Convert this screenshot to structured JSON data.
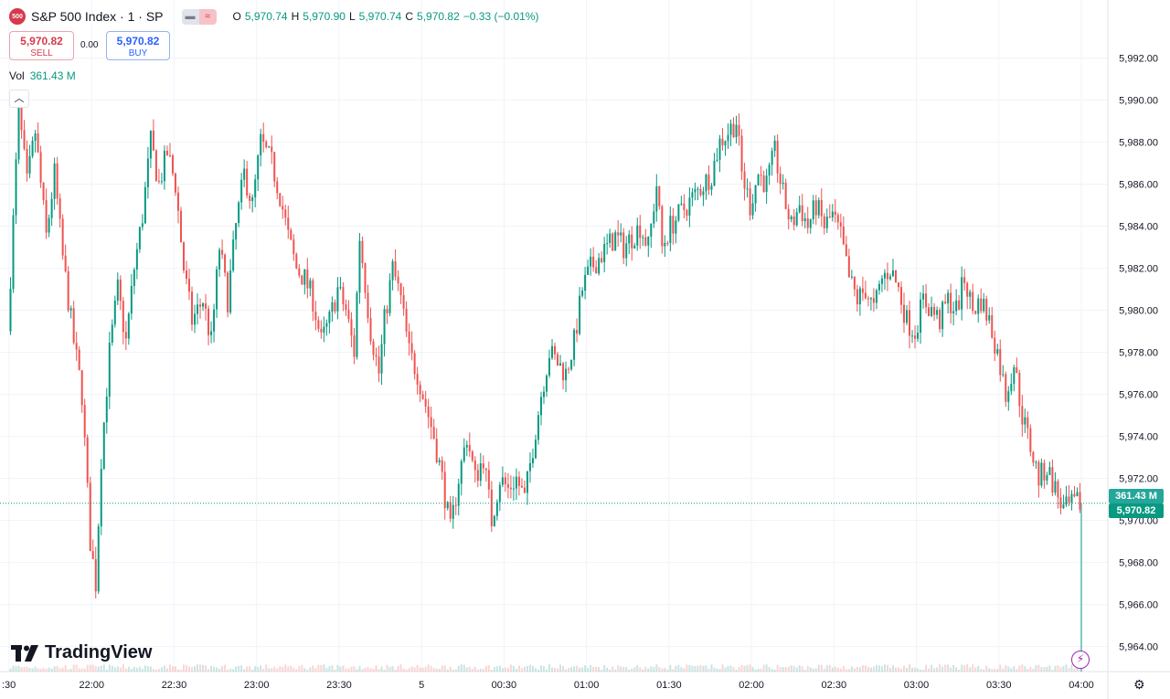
{
  "header": {
    "symbol_badge": "500",
    "title": "S&P 500 Index · 1 · SP",
    "ohlc": {
      "o_label": "O",
      "o": "5,970.74",
      "h_label": "H",
      "h": "5,970.90",
      "l_label": "L",
      "l": "5,970.74",
      "c_label": "C",
      "c": "5,970.82",
      "change": "−0.33 (−0.01%)"
    }
  },
  "trade": {
    "sell_price": "5,970.82",
    "sell_label": "SELL",
    "spread": "0.00",
    "buy_price": "5,970.82",
    "buy_label": "BUY"
  },
  "volume": {
    "label": "Vol",
    "value": "361.43 M"
  },
  "tags": {
    "volume": "361.43 M",
    "price": "5,970.82"
  },
  "brand": {
    "name": "TradingView"
  },
  "colors": {
    "up": "#089981",
    "down": "#ef5350",
    "grid": "#f0f3fa",
    "accent": "#2962ff"
  },
  "icons": [
    "collapse-icon",
    "lightning-icon",
    "settings-gear-icon",
    "tradingview-logo-icon"
  ],
  "chart_data": {
    "type": "candlestick",
    "title": "S&P 500 Index · 1 · SP",
    "ylim": [
      5963.2,
      5993.2
    ],
    "y_ticks": [
      5992,
      5990,
      5988,
      5986,
      5984,
      5982,
      5980,
      5978,
      5976,
      5974,
      5972,
      5970,
      5968,
      5966,
      5964
    ],
    "y_tick_labels": [
      "5,992.00",
      "5,990.00",
      "5,988.00",
      "5,986.00",
      "5,984.00",
      "5,982.00",
      "5,980.00",
      "5,978.00",
      "5,976.00",
      "5,974.00",
      "5,972.00",
      "5,970.00",
      "5,968.00",
      "5,966.00",
      "5,964.00"
    ],
    "x_tick_labels": [
      ":30",
      "22:00",
      "22:30",
      "23:00",
      "23:30",
      "5",
      "00:30",
      "01:00",
      "01:30",
      "02:00",
      "02:30",
      "03:00",
      "03:30",
      "04:00"
    ],
    "last_price": 5970.82,
    "anchors": [
      {
        "t": "21:30",
        "p": 5979.0
      },
      {
        "t": "21:34",
        "p": 5989.5
      },
      {
        "t": "21:37",
        "p": 5986.0
      },
      {
        "t": "21:40",
        "p": 5988.5
      },
      {
        "t": "21:44",
        "p": 5983.5
      },
      {
        "t": "21:47",
        "p": 5986.5
      },
      {
        "t": "21:50",
        "p": 5982.5
      },
      {
        "t": "21:54",
        "p": 5978.5
      },
      {
        "t": "21:57",
        "p": 5976.0
      },
      {
        "t": "22:00",
        "p": 5969.0
      },
      {
        "t": "22:02",
        "p": 5967.0
      },
      {
        "t": "22:04",
        "p": 5973.0
      },
      {
        "t": "22:07",
        "p": 5978.0
      },
      {
        "t": "22:10",
        "p": 5981.0
      },
      {
        "t": "22:13",
        "p": 5978.5
      },
      {
        "t": "22:16",
        "p": 5982.0
      },
      {
        "t": "22:19",
        "p": 5984.5
      },
      {
        "t": "22:22",
        "p": 5988.0
      },
      {
        "t": "22:25",
        "p": 5986.0
      },
      {
        "t": "22:28",
        "p": 5987.5
      },
      {
        "t": "22:31",
        "p": 5986.0
      },
      {
        "t": "22:34",
        "p": 5982.0
      },
      {
        "t": "22:37",
        "p": 5979.5
      },
      {
        "t": "22:41",
        "p": 5980.5
      },
      {
        "t": "22:44",
        "p": 5978.5
      },
      {
        "t": "22:47",
        "p": 5983.0
      },
      {
        "t": "22:50",
        "p": 5980.5
      },
      {
        "t": "22:53",
        "p": 5984.0
      },
      {
        "t": "22:56",
        "p": 5986.5
      },
      {
        "t": "22:59",
        "p": 5985.0
      },
      {
        "t": "23:02",
        "p": 5988.0
      },
      {
        "t": "23:06",
        "p": 5987.0
      },
      {
        "t": "23:09",
        "p": 5985.5
      },
      {
        "t": "23:12",
        "p": 5983.5
      },
      {
        "t": "23:15",
        "p": 5982.0
      },
      {
        "t": "23:18",
        "p": 5981.5
      },
      {
        "t": "23:21",
        "p": 5980.5
      },
      {
        "t": "23:24",
        "p": 5978.5
      },
      {
        "t": "23:27",
        "p": 5979.5
      },
      {
        "t": "23:30",
        "p": 5981.0
      },
      {
        "t": "23:33",
        "p": 5980.0
      },
      {
        "t": "23:36",
        "p": 5978.0
      },
      {
        "t": "23:38",
        "p": 5983.5
      },
      {
        "t": "23:42",
        "p": 5979.0
      },
      {
        "t": "23:45",
        "p": 5977.0
      },
      {
        "t": "23:47",
        "p": 5979.5
      },
      {
        "t": "23:50",
        "p": 5982.0
      },
      {
        "t": "23:53",
        "p": 5980.5
      },
      {
        "t": "23:56",
        "p": 5978.0
      },
      {
        "t": "23:59",
        "p": 5977.0
      },
      {
        "t": "00:02",
        "p": 5975.5
      },
      {
        "t": "00:05",
        "p": 5974.0
      },
      {
        "t": "00:08",
        "p": 5972.0
      },
      {
        "t": "00:11",
        "p": 5969.5
      },
      {
        "t": "00:14",
        "p": 5972.0
      },
      {
        "t": "00:17",
        "p": 5974.0
      },
      {
        "t": "00:20",
        "p": 5972.0
      },
      {
        "t": "00:23",
        "p": 5973.0
      },
      {
        "t": "00:26",
        "p": 5970.0
      },
      {
        "t": "00:29",
        "p": 5972.0
      },
      {
        "t": "00:32",
        "p": 5971.5
      },
      {
        "t": "00:35",
        "p": 5972.0
      },
      {
        "t": "00:38",
        "p": 5971.0
      },
      {
        "t": "00:41",
        "p": 5973.5
      },
      {
        "t": "00:44",
        "p": 5976.0
      },
      {
        "t": "00:47",
        "p": 5978.0
      },
      {
        "t": "00:50",
        "p": 5977.5
      },
      {
        "t": "00:53",
        "p": 5977.0
      },
      {
        "t": "00:56",
        "p": 5978.5
      },
      {
        "t": "00:59",
        "p": 5981.0
      },
      {
        "t": "01:02",
        "p": 5982.0
      },
      {
        "t": "01:05",
        "p": 5982.5
      },
      {
        "t": "01:08",
        "p": 5983.0
      },
      {
        "t": "01:11",
        "p": 5983.5
      },
      {
        "t": "01:14",
        "p": 5983.0
      },
      {
        "t": "01:17",
        "p": 5983.5
      },
      {
        "t": "01:20",
        "p": 5984.0
      },
      {
        "t": "01:23",
        "p": 5983.0
      },
      {
        "t": "01:26",
        "p": 5986.0
      },
      {
        "t": "01:28",
        "p": 5983.0
      },
      {
        "t": "01:31",
        "p": 5984.0
      },
      {
        "t": "01:34",
        "p": 5984.5
      },
      {
        "t": "01:37",
        "p": 5985.0
      },
      {
        "t": "01:40",
        "p": 5985.5
      },
      {
        "t": "01:43",
        "p": 5986.0
      },
      {
        "t": "01:46",
        "p": 5986.5
      },
      {
        "t": "01:49",
        "p": 5988.0
      },
      {
        "t": "01:52",
        "p": 5988.5
      },
      {
        "t": "01:55",
        "p": 5989.0
      },
      {
        "t": "01:57",
        "p": 5986.5
      },
      {
        "t": "02:00",
        "p": 5985.0
      },
      {
        "t": "02:03",
        "p": 5986.5
      },
      {
        "t": "02:06",
        "p": 5986.0
      },
      {
        "t": "02:09",
        "p": 5987.5
      },
      {
        "t": "02:12",
        "p": 5985.5
      },
      {
        "t": "02:15",
        "p": 5984.0
      },
      {
        "t": "02:18",
        "p": 5985.0
      },
      {
        "t": "02:21",
        "p": 5984.0
      },
      {
        "t": "02:24",
        "p": 5985.0
      },
      {
        "t": "02:27",
        "p": 5984.0
      },
      {
        "t": "02:30",
        "p": 5984.5
      },
      {
        "t": "02:33",
        "p": 5983.5
      },
      {
        "t": "02:36",
        "p": 5981.5
      },
      {
        "t": "02:39",
        "p": 5980.5
      },
      {
        "t": "02:42",
        "p": 5981.0
      },
      {
        "t": "02:45",
        "p": 5980.0
      },
      {
        "t": "02:48",
        "p": 5981.5
      },
      {
        "t": "02:51",
        "p": 5982.0
      },
      {
        "t": "02:54",
        "p": 5981.0
      },
      {
        "t": "02:57",
        "p": 5979.5
      },
      {
        "t": "03:00",
        "p": 5979.0
      },
      {
        "t": "03:03",
        "p": 5980.5
      },
      {
        "t": "03:06",
        "p": 5980.0
      },
      {
        "t": "03:09",
        "p": 5979.5
      },
      {
        "t": "03:12",
        "p": 5980.5
      },
      {
        "t": "03:15",
        "p": 5980.0
      },
      {
        "t": "03:18",
        "p": 5981.5
      },
      {
        "t": "03:21",
        "p": 5980.0
      },
      {
        "t": "03:24",
        "p": 5980.5
      },
      {
        "t": "03:27",
        "p": 5979.5
      },
      {
        "t": "03:30",
        "p": 5978.0
      },
      {
        "t": "03:33",
        "p": 5976.0
      },
      {
        "t": "03:36",
        "p": 5977.5
      },
      {
        "t": "03:39",
        "p": 5975.0
      },
      {
        "t": "03:42",
        "p": 5973.5
      },
      {
        "t": "03:45",
        "p": 5972.0
      },
      {
        "t": "03:48",
        "p": 5972.5
      },
      {
        "t": "03:51",
        "p": 5971.5
      },
      {
        "t": "03:54",
        "p": 5970.5
      },
      {
        "t": "03:59",
        "p": 5970.82
      }
    ]
  }
}
